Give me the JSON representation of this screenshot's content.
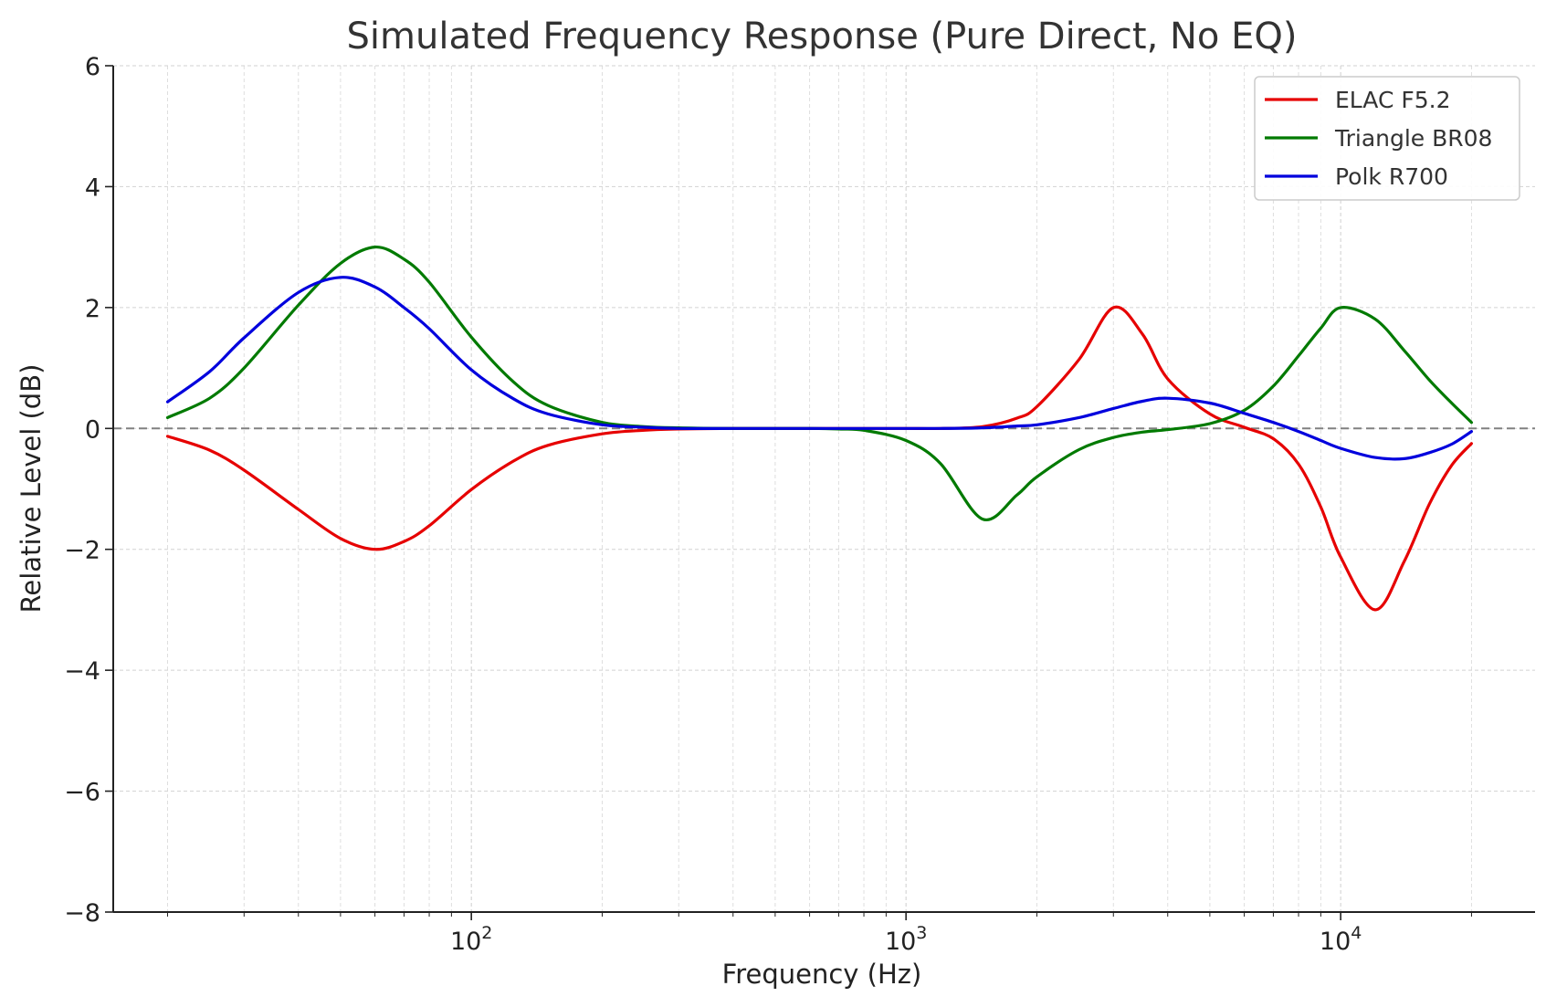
{
  "chart_data": {
    "type": "line",
    "title": "Simulated Frequency Response (Pure Direct, No EQ)",
    "xlabel": "Frequency (Hz)",
    "ylabel": "Relative Level (dB)",
    "x_scale": "log",
    "xlim": [
      15,
      28000
    ],
    "ylim": [
      -8,
      6
    ],
    "x_ticks": [
      100,
      1000,
      10000
    ],
    "x_tick_labels": [
      {
        "base": "10",
        "exp": "2"
      },
      {
        "base": "10",
        "exp": "3"
      },
      {
        "base": "10",
        "exp": "4"
      }
    ],
    "y_ticks": [
      -8,
      -6,
      -4,
      -2,
      0,
      2,
      4,
      6
    ],
    "y_tick_labels": [
      "−8",
      "−6",
      "−4",
      "−2",
      "0",
      "2",
      "4",
      "6"
    ],
    "grid": true,
    "reference_line": {
      "y": 0,
      "style": "dashed",
      "color": "#808080"
    },
    "legend": {
      "placement": "top-right"
    },
    "x": [
      20,
      25,
      30,
      40,
      50,
      60,
      70,
      80,
      100,
      125,
      150,
      200,
      250,
      300,
      400,
      500,
      600,
      700,
      800,
      1000,
      1200,
      1500,
      1800,
      2000,
      2500,
      3000,
      3500,
      4000,
      5000,
      6000,
      7000,
      8000,
      9000,
      10000,
      12000,
      14000,
      16000,
      18000,
      20000
    ],
    "series": [
      {
        "name": "ELAC F5.2",
        "color": "#e60000",
        "values": [
          -0.13,
          -0.36,
          -0.69,
          -1.34,
          -1.82,
          -2.0,
          -1.87,
          -1.61,
          -1.01,
          -0.54,
          -0.28,
          -0.09,
          -0.03,
          -0.01,
          0.0,
          0.0,
          0.0,
          0.0,
          0.0,
          0.0,
          0.0,
          0.03,
          0.17,
          0.36,
          1.14,
          2.0,
          1.56,
          0.82,
          0.24,
          0.02,
          -0.17,
          -0.59,
          -1.3,
          -2.13,
          -3.0,
          -2.2,
          -1.25,
          -0.61,
          -0.25
        ]
      },
      {
        "name": "Triangle BR08",
        "color": "#007a00",
        "values": [
          0.18,
          0.5,
          1.0,
          2.04,
          2.73,
          3.0,
          2.8,
          2.42,
          1.51,
          0.77,
          0.38,
          0.1,
          0.03,
          0.01,
          0.0,
          0.0,
          0.0,
          -0.01,
          -0.03,
          -0.2,
          -0.58,
          -1.5,
          -1.1,
          -0.8,
          -0.35,
          -0.15,
          -0.06,
          -0.02,
          0.08,
          0.3,
          0.7,
          1.2,
          1.66,
          2.0,
          1.81,
          1.29,
          0.8,
          0.42,
          0.1
        ]
      },
      {
        "name": "Polk R700",
        "color": "#0000dd",
        "values": [
          0.44,
          0.94,
          1.5,
          2.25,
          2.5,
          2.34,
          2.0,
          1.65,
          0.97,
          0.49,
          0.24,
          0.06,
          0.02,
          0.0,
          0.0,
          0.0,
          0.0,
          0.0,
          0.0,
          0.0,
          0.0,
          0.01,
          0.04,
          0.06,
          0.18,
          0.33,
          0.45,
          0.5,
          0.42,
          0.25,
          0.1,
          -0.05,
          -0.2,
          -0.33,
          -0.48,
          -0.5,
          -0.4,
          -0.26,
          -0.05
        ]
      }
    ]
  }
}
